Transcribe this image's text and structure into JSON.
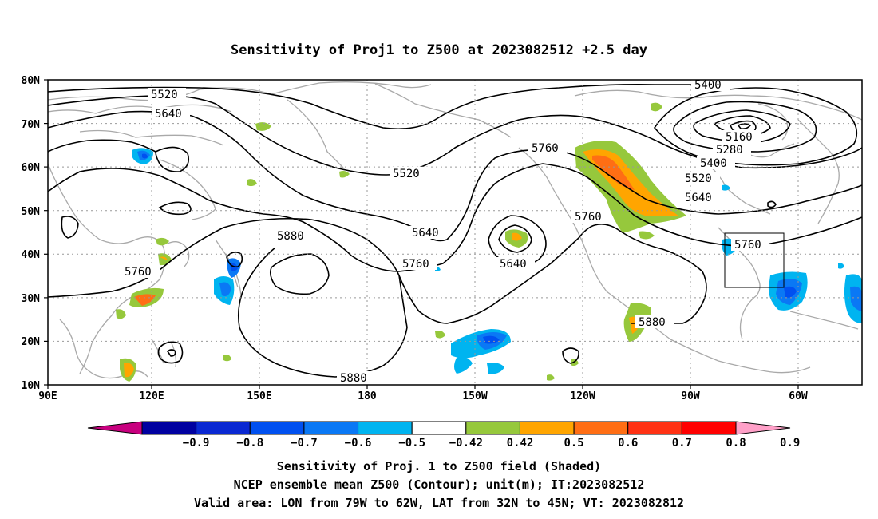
{
  "title": "Sensitivity of Proj1 to Z500 at 2023082512 +2.5 day",
  "lat_labels": [
    "80N",
    "70N",
    "60N",
    "50N",
    "40N",
    "30N",
    "20N",
    "10N"
  ],
  "lon_labels": [
    "90E",
    "120E",
    "150E",
    "180",
    "150W",
    "120W",
    "90W",
    "60W"
  ],
  "contour_labels": [
    "5520",
    "5640",
    "5760",
    "5880",
    "5520",
    "5640",
    "5760",
    "5880",
    "5640",
    "5760",
    "5760",
    "5880",
    "5880",
    "5400",
    "5160",
    "5280",
    "5400",
    "5520",
    "5640",
    "5760",
    "5880"
  ],
  "colorbar": {
    "tick_labels": [
      "-0.9",
      "-0.8",
      "-0.7",
      "-0.6",
      "-0.5",
      "-0.42",
      "0.42",
      "0.5",
      "0.6",
      "0.7",
      "0.8",
      "0.9"
    ],
    "colors": [
      "#c8007f",
      "#0000a0",
      "#0a28d2",
      "#0050f0",
      "#0a78f5",
      "#00b4f0",
      "#ffffff",
      "#96c83c",
      "#ffa500",
      "#ff6e14",
      "#ff3214",
      "#ff0000",
      "#ffa0c8"
    ]
  },
  "footer": {
    "line1": "Sensitivity of Proj. 1 to Z500 field (Shaded)",
    "line2": "NCEP ensemble mean Z500 (Contour); unit(m); IT:2023082512",
    "line3": "Valid area: LON from 79W to 62W, LAT from 32N to 45N; VT: 2023082812"
  },
  "valid_box": {
    "lon_min": -79,
    "lon_max": -62,
    "lat_min": 32,
    "lat_max": 45
  }
}
